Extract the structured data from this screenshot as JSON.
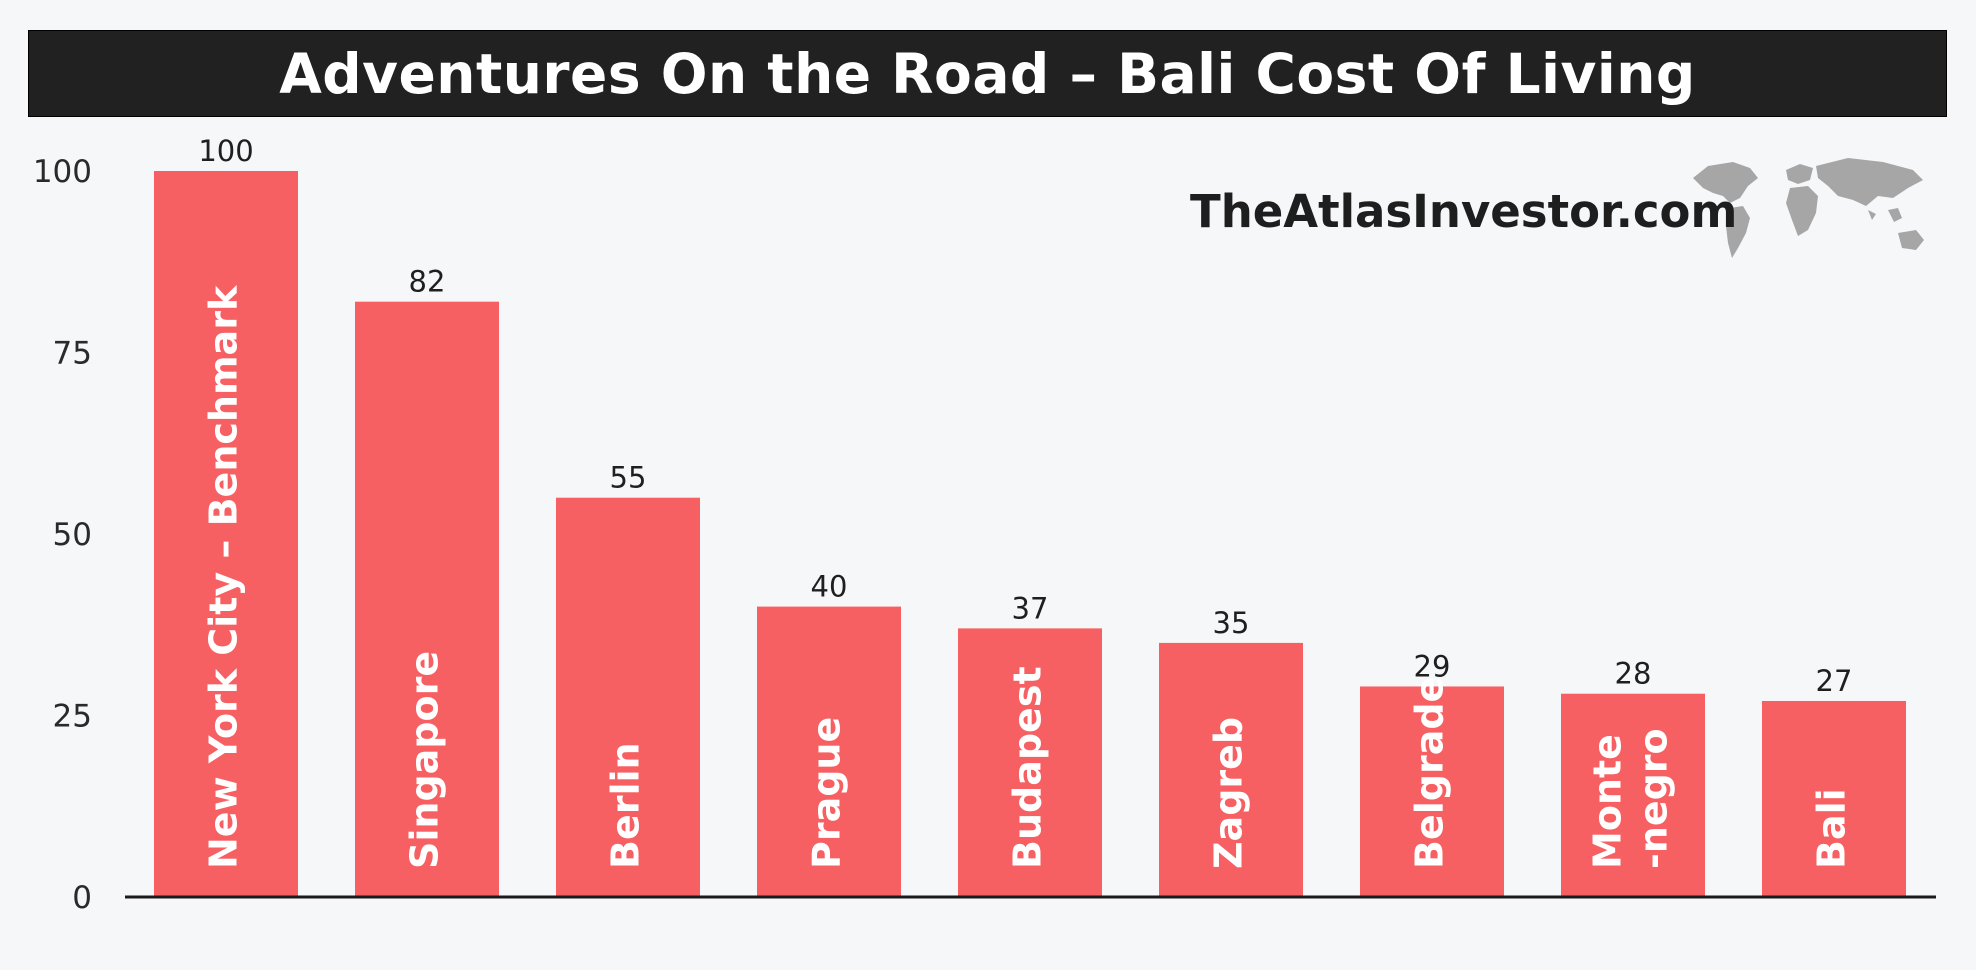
{
  "header": {
    "title": "Adventures On the Road – Bali Cost Of Living"
  },
  "watermark": {
    "text": "TheAtlasInvestor.com",
    "icon": "world-map-icon"
  },
  "colors": {
    "bar": "#f76062",
    "title_bg": "#212121",
    "background": "#f6f7f9"
  },
  "chart_data": {
    "type": "bar",
    "title": "Adventures On the Road – Bali Cost Of Living",
    "xlabel": "",
    "ylabel": "",
    "ylim": [
      0,
      100
    ],
    "yticks": [
      0,
      25,
      50,
      75,
      100
    ],
    "grid": false,
    "legend": "none",
    "categories": [
      "New York City – Benchmark",
      "Singapore",
      "Berlin",
      "Prague",
      "Budapest",
      "Zagreb",
      "Belgrade",
      "Monte\n-negro",
      "Bali"
    ],
    "values": [
      100,
      82,
      55,
      40,
      37,
      35,
      29,
      28,
      27
    ]
  }
}
